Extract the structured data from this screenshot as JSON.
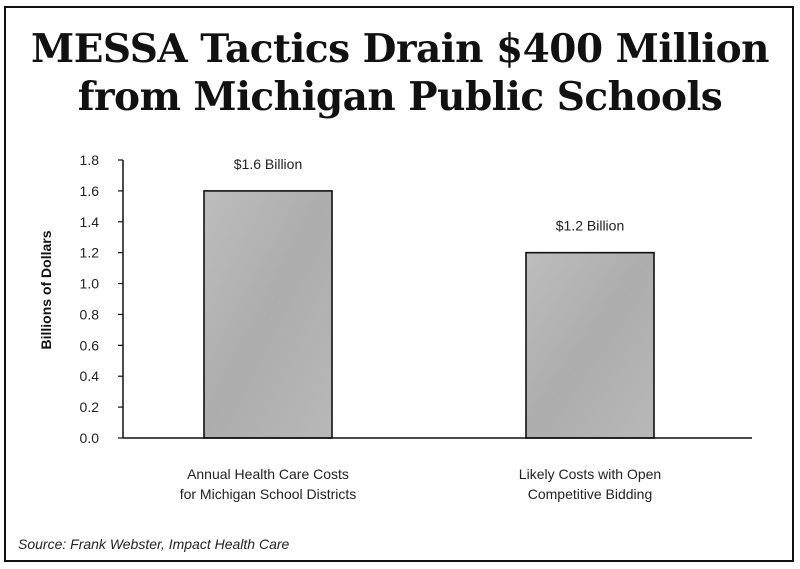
{
  "chart_data": {
    "type": "bar",
    "title": [
      "MESSA Tactics Drain $400 Million",
      "from Michigan Public Schools"
    ],
    "ylabel": "Billions of Dollars",
    "ylim": [
      0,
      1.8
    ],
    "yticks": [
      "0.0",
      "0.2",
      "0.4",
      "0.6",
      "0.8",
      "1.0",
      "1.2",
      "1.4",
      "1.6",
      "1.8"
    ],
    "categories": [
      [
        "Annual Health Care Costs",
        "for Michigan School Districts"
      ],
      [
        "Likely Costs with Open",
        "Competitive Bidding"
      ]
    ],
    "values": [
      1.6,
      1.2
    ],
    "data_labels": [
      "$1.6 Billion",
      "$1.2 Billion"
    ],
    "bar_color": "#b3b3b3",
    "grid": false,
    "source": "Source:  Frank Webster, Impact Health Care"
  }
}
